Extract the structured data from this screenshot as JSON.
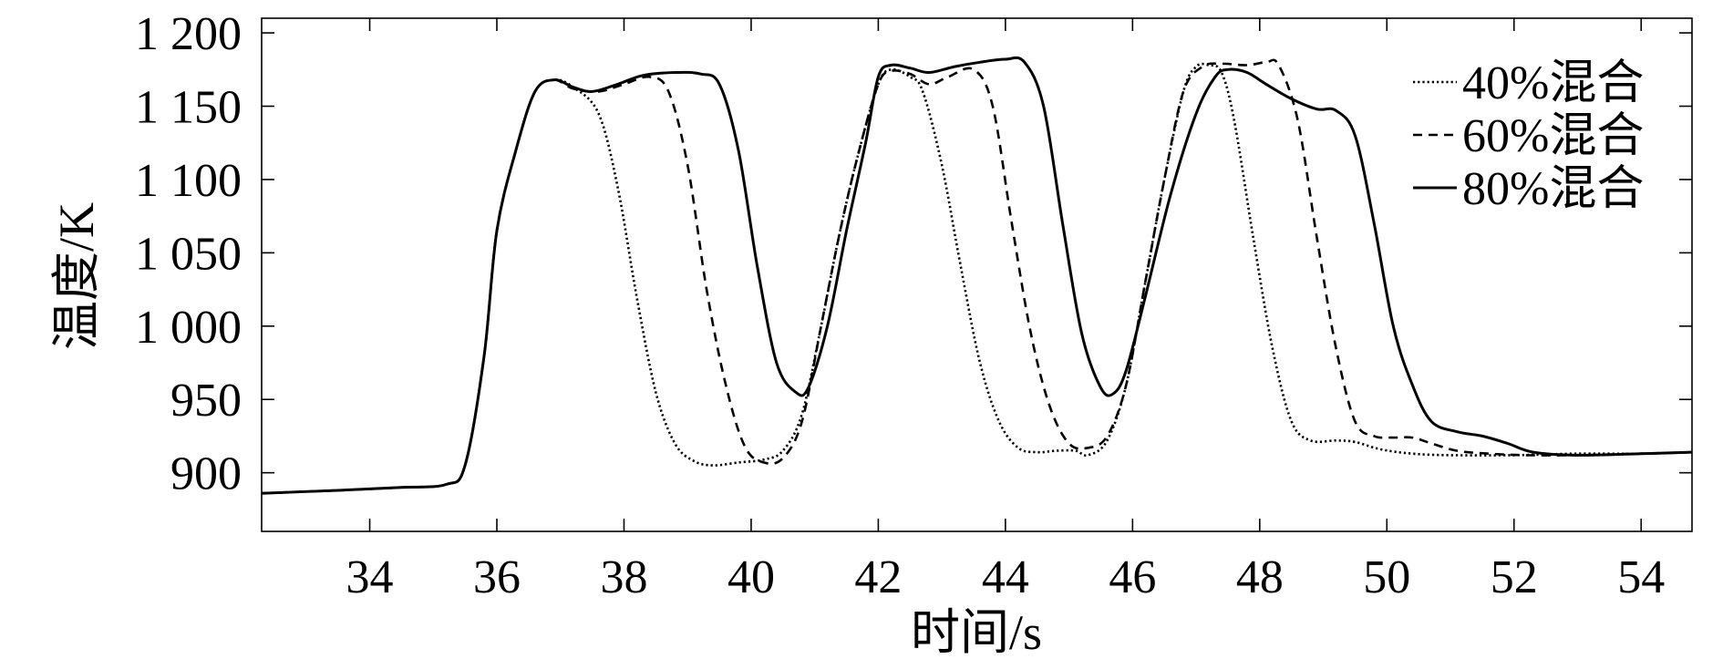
{
  "chart_data": {
    "type": "line",
    "title": "",
    "xlabel": "时间/s",
    "ylabel": "温度/K",
    "xlim": [
      32.3,
      54.8
    ],
    "ylim": [
      860,
      1210
    ],
    "xticks": [
      34,
      36,
      38,
      40,
      42,
      44,
      46,
      48,
      50,
      52,
      54
    ],
    "xtick_labels": [
      "34",
      "36",
      "38",
      "40",
      "42",
      "44",
      "46",
      "48",
      "50",
      "52",
      "54"
    ],
    "yticks": [
      900,
      950,
      1000,
      1050,
      1100,
      1150,
      1200
    ],
    "ytick_labels": [
      "900",
      "950",
      "1 000",
      "1 050",
      "1 100",
      "1 150",
      "1 200"
    ],
    "grid": false,
    "legend_position": "top-right",
    "series": [
      {
        "name": "40%混合",
        "style": "dotted",
        "color": "#000000",
        "points": [
          [
            32.3,
            886
          ],
          [
            33.5,
            888
          ],
          [
            34.5,
            890
          ],
          [
            35.2,
            892
          ],
          [
            35.5,
            905
          ],
          [
            35.8,
            980
          ],
          [
            36.0,
            1065
          ],
          [
            36.3,
            1120
          ],
          [
            36.6,
            1160
          ],
          [
            36.9,
            1168
          ],
          [
            37.2,
            1163
          ],
          [
            37.6,
            1145
          ],
          [
            37.9,
            1095
          ],
          [
            38.2,
            1020
          ],
          [
            38.5,
            955
          ],
          [
            38.8,
            920
          ],
          [
            39.1,
            908
          ],
          [
            39.4,
            905
          ],
          [
            39.8,
            907
          ],
          [
            40.2,
            909
          ],
          [
            40.5,
            915
          ],
          [
            40.8,
            940
          ],
          [
            41.1,
            1000
          ],
          [
            41.4,
            1065
          ],
          [
            41.7,
            1120
          ],
          [
            42.0,
            1165
          ],
          [
            42.2,
            1175
          ],
          [
            42.5,
            1170
          ],
          [
            42.7,
            1160
          ],
          [
            43.0,
            1110
          ],
          [
            43.3,
            1040
          ],
          [
            43.6,
            975
          ],
          [
            43.9,
            935
          ],
          [
            44.2,
            917
          ],
          [
            44.5,
            914
          ],
          [
            44.8,
            915
          ],
          [
            45.1,
            915
          ],
          [
            45.3,
            912
          ],
          [
            45.6,
            922
          ],
          [
            45.9,
            960
          ],
          [
            46.2,
            1030
          ],
          [
            46.5,
            1100
          ],
          [
            46.8,
            1160
          ],
          [
            47.0,
            1177
          ],
          [
            47.2,
            1178
          ],
          [
            47.4,
            1173
          ],
          [
            47.6,
            1140
          ],
          [
            47.9,
            1060
          ],
          [
            48.2,
            985
          ],
          [
            48.5,
            935
          ],
          [
            48.8,
            922
          ],
          [
            49.2,
            922
          ],
          [
            49.5,
            921
          ],
          [
            49.9,
            916
          ],
          [
            50.4,
            913
          ],
          [
            51.0,
            912
          ],
          [
            52.0,
            912
          ],
          [
            53.0,
            913
          ],
          [
            54.0,
            913
          ],
          [
            54.8,
            914
          ]
        ]
      },
      {
        "name": "60%混合",
        "style": "dashed",
        "color": "#000000",
        "points": [
          [
            32.3,
            886
          ],
          [
            33.5,
            888
          ],
          [
            34.5,
            890
          ],
          [
            35.2,
            892
          ],
          [
            35.5,
            905
          ],
          [
            35.8,
            980
          ],
          [
            36.0,
            1065
          ],
          [
            36.3,
            1120
          ],
          [
            36.6,
            1160
          ],
          [
            36.9,
            1168
          ],
          [
            37.2,
            1162
          ],
          [
            37.6,
            1160
          ],
          [
            38.0,
            1165
          ],
          [
            38.4,
            1170
          ],
          [
            38.7,
            1160
          ],
          [
            39.0,
            1110
          ],
          [
            39.3,
            1025
          ],
          [
            39.6,
            960
          ],
          [
            39.9,
            918
          ],
          [
            40.2,
            907
          ],
          [
            40.5,
            910
          ],
          [
            40.8,
            935
          ],
          [
            41.1,
            1000
          ],
          [
            41.4,
            1065
          ],
          [
            41.7,
            1120
          ],
          [
            42.0,
            1165
          ],
          [
            42.2,
            1174
          ],
          [
            42.5,
            1172
          ],
          [
            42.8,
            1165
          ],
          [
            43.1,
            1170
          ],
          [
            43.5,
            1175
          ],
          [
            43.8,
            1150
          ],
          [
            44.1,
            1070
          ],
          [
            44.4,
            995
          ],
          [
            44.7,
            945
          ],
          [
            45.0,
            920
          ],
          [
            45.3,
            917
          ],
          [
            45.6,
            925
          ],
          [
            45.9,
            960
          ],
          [
            46.2,
            1030
          ],
          [
            46.5,
            1100
          ],
          [
            46.8,
            1160
          ],
          [
            47.1,
            1177
          ],
          [
            47.4,
            1179
          ],
          [
            47.8,
            1178
          ],
          [
            48.1,
            1180
          ],
          [
            48.3,
            1178
          ],
          [
            48.6,
            1140
          ],
          [
            48.9,
            1060
          ],
          [
            49.2,
            985
          ],
          [
            49.5,
            935
          ],
          [
            49.8,
            925
          ],
          [
            50.1,
            924
          ],
          [
            50.4,
            924
          ],
          [
            50.7,
            920
          ],
          [
            51.1,
            915
          ],
          [
            51.6,
            913
          ],
          [
            52.2,
            912
          ],
          [
            53.0,
            912
          ],
          [
            54.0,
            913
          ],
          [
            54.8,
            914
          ]
        ]
      },
      {
        "name": "80%混合",
        "style": "solid",
        "color": "#000000",
        "points": [
          [
            32.3,
            886
          ],
          [
            33.5,
            888
          ],
          [
            34.5,
            890
          ],
          [
            35.2,
            892
          ],
          [
            35.5,
            905
          ],
          [
            35.8,
            980
          ],
          [
            36.0,
            1065
          ],
          [
            36.3,
            1120
          ],
          [
            36.6,
            1160
          ],
          [
            36.9,
            1168
          ],
          [
            37.2,
            1163
          ],
          [
            37.5,
            1160
          ],
          [
            37.9,
            1165
          ],
          [
            38.3,
            1171
          ],
          [
            38.8,
            1173
          ],
          [
            39.2,
            1172
          ],
          [
            39.5,
            1165
          ],
          [
            39.8,
            1120
          ],
          [
            40.1,
            1040
          ],
          [
            40.4,
            975
          ],
          [
            40.7,
            955
          ],
          [
            40.9,
            958
          ],
          [
            41.2,
            1000
          ],
          [
            41.5,
            1065
          ],
          [
            41.8,
            1125
          ],
          [
            42.0,
            1170
          ],
          [
            42.2,
            1178
          ],
          [
            42.5,
            1176
          ],
          [
            42.8,
            1173
          ],
          [
            43.2,
            1177
          ],
          [
            43.6,
            1180
          ],
          [
            44.0,
            1182
          ],
          [
            44.3,
            1180
          ],
          [
            44.6,
            1150
          ],
          [
            44.9,
            1070
          ],
          [
            45.2,
            995
          ],
          [
            45.5,
            958
          ],
          [
            45.7,
            954
          ],
          [
            45.9,
            970
          ],
          [
            46.2,
            1020
          ],
          [
            46.6,
            1090
          ],
          [
            47.0,
            1145
          ],
          [
            47.3,
            1170
          ],
          [
            47.5,
            1175
          ],
          [
            47.8,
            1173
          ],
          [
            48.1,
            1165
          ],
          [
            48.5,
            1155
          ],
          [
            48.9,
            1148
          ],
          [
            49.2,
            1147
          ],
          [
            49.5,
            1130
          ],
          [
            49.8,
            1070
          ],
          [
            50.1,
            1000
          ],
          [
            50.4,
            960
          ],
          [
            50.7,
            935
          ],
          [
            51.1,
            928
          ],
          [
            51.5,
            925
          ],
          [
            51.9,
            920
          ],
          [
            52.3,
            914
          ],
          [
            53.0,
            912
          ],
          [
            54.0,
            913
          ],
          [
            54.8,
            914
          ]
        ]
      }
    ]
  }
}
